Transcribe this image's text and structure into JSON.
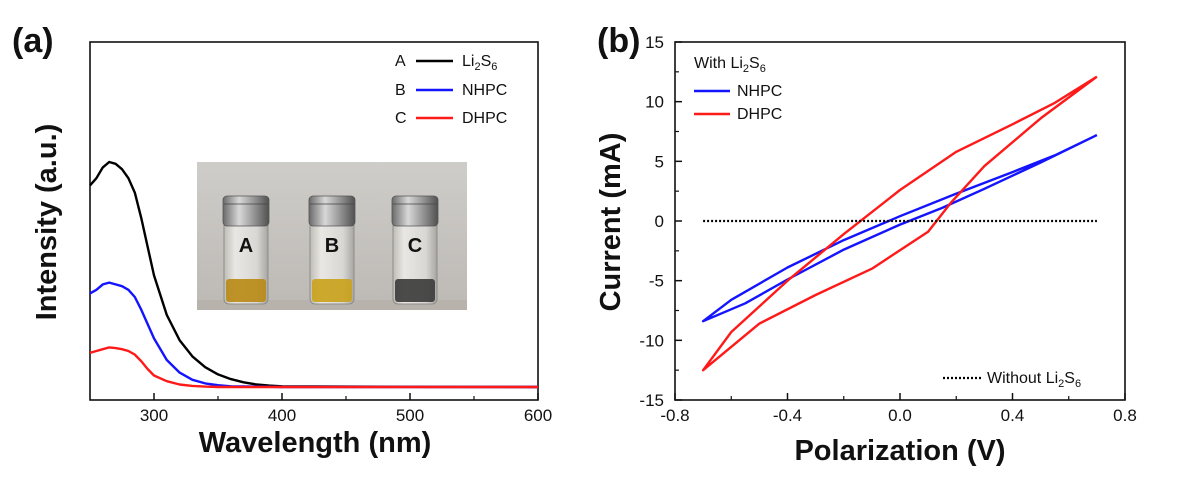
{
  "chart_data": [
    {
      "panel_label": "(a)",
      "type": "line",
      "xlabel": "Wavelength (nm)",
      "ylabel": "Intensity (a.u.)",
      "xlim": [
        250,
        600
      ],
      "x_ticks": [
        300,
        400,
        500,
        600
      ],
      "y_ticks_shown": false,
      "grid": false,
      "legend_position": "top-right",
      "legend": [
        {
          "letter": "A",
          "base": "Li",
          "sub1": "2",
          "mid": "S",
          "sub2": "6",
          "color": "#000000"
        },
        {
          "letter": "B",
          "base": "NHPC",
          "color": "#1414ff"
        },
        {
          "letter": "C",
          "base": "DHPC",
          "color": "#ff1a1a"
        }
      ],
      "series": [
        {
          "color": "#000000",
          "points": [
            [
              250,
              0.56
            ],
            [
              255,
              0.58
            ],
            [
              260,
              0.61
            ],
            [
              265,
              0.625
            ],
            [
              270,
              0.62
            ],
            [
              275,
              0.605
            ],
            [
              280,
              0.58
            ],
            [
              285,
              0.54
            ],
            [
              290,
              0.47
            ],
            [
              295,
              0.39
            ],
            [
              300,
              0.31
            ],
            [
              310,
              0.2
            ],
            [
              320,
              0.13
            ],
            [
              330,
              0.085
            ],
            [
              340,
              0.055
            ],
            [
              350,
              0.035
            ],
            [
              360,
              0.022
            ],
            [
              370,
              0.013
            ],
            [
              380,
              0.007
            ],
            [
              390,
              0.004
            ],
            [
              400,
              0.002
            ],
            [
              450,
              0.001
            ],
            [
              500,
              0.0005
            ],
            [
              600,
              0
            ]
          ]
        },
        {
          "color": "#1414ff",
          "points": [
            [
              250,
              0.26
            ],
            [
              255,
              0.27
            ],
            [
              260,
              0.285
            ],
            [
              265,
              0.29
            ],
            [
              270,
              0.285
            ],
            [
              275,
              0.28
            ],
            [
              280,
              0.27
            ],
            [
              285,
              0.25
            ],
            [
              290,
              0.215
            ],
            [
              295,
              0.175
            ],
            [
              300,
              0.135
            ],
            [
              310,
              0.075
            ],
            [
              320,
              0.04
            ],
            [
              330,
              0.02
            ],
            [
              340,
              0.01
            ],
            [
              350,
              0.005
            ],
            [
              360,
              0.002
            ],
            [
              380,
              0.001
            ],
            [
              400,
              0
            ],
            [
              600,
              0
            ]
          ]
        },
        {
          "color": "#ff1a1a",
          "points": [
            [
              250,
              0.095
            ],
            [
              255,
              0.1
            ],
            [
              260,
              0.105
            ],
            [
              265,
              0.11
            ],
            [
              270,
              0.108
            ],
            [
              275,
              0.105
            ],
            [
              280,
              0.1
            ],
            [
              285,
              0.09
            ],
            [
              290,
              0.072
            ],
            [
              295,
              0.05
            ],
            [
              300,
              0.032
            ],
            [
              310,
              0.016
            ],
            [
              320,
              0.007
            ],
            [
              330,
              0.003
            ],
            [
              340,
              0.001
            ],
            [
              350,
              0
            ],
            [
              600,
              0
            ]
          ]
        }
      ],
      "inset_photo": {
        "vial_labels": [
          "A",
          "B",
          "C"
        ],
        "liquid_colors": [
          "#b88a14",
          "#c9a21a",
          "#3a3a3a"
        ]
      }
    },
    {
      "panel_label": "(b)",
      "type": "line",
      "xlabel": "Polarization (V)",
      "ylabel": "Current (mA)",
      "xlim": [
        -0.8,
        0.8
      ],
      "ylim": [
        -15,
        15
      ],
      "x_ticks": [
        "-0.8",
        "-0.4",
        "0.0",
        "0.4",
        "0.8"
      ],
      "y_ticks": [
        "15",
        "10",
        "5",
        "0",
        "-5",
        "-10",
        "-15"
      ],
      "grid": false,
      "legend_title": {
        "base": "With Li",
        "sub1": "2",
        "mid": "S",
        "sub2": "6"
      },
      "legend": [
        {
          "base": "NHPC",
          "color": "#1414ff"
        },
        {
          "base": "DHPC",
          "color": "#ff1a1a"
        }
      ],
      "legend2": {
        "base": "Without Li",
        "sub1": "2",
        "mid": "S",
        "sub2": "6",
        "color": "#000000"
      },
      "series": [
        {
          "color": "#1414ff",
          "points": [
            [
              0.7,
              7.2
            ],
            [
              0.5,
              4.9
            ],
            [
              0.3,
              2.7
            ],
            [
              0.15,
              1.1
            ],
            [
              0.0,
              -0.3
            ],
            [
              -0.2,
              -2.4
            ],
            [
              -0.4,
              -4.9
            ],
            [
              -0.55,
              -6.9
            ],
            [
              -0.7,
              -8.4
            ],
            [
              -0.6,
              -6.6
            ],
            [
              -0.4,
              -3.9
            ],
            [
              -0.2,
              -1.6
            ],
            [
              0.0,
              0.4
            ],
            [
              0.2,
              2.3
            ],
            [
              0.4,
              4.1
            ],
            [
              0.55,
              5.5
            ],
            [
              0.7,
              7.2
            ]
          ]
        },
        {
          "color": "#ff1a1a",
          "points": [
            [
              0.7,
              12.1
            ],
            [
              0.5,
              8.6
            ],
            [
              0.3,
              4.6
            ],
            [
              0.18,
              1.5
            ],
            [
              0.1,
              -0.9
            ],
            [
              -0.1,
              -4.0
            ],
            [
              -0.3,
              -6.2
            ],
            [
              -0.5,
              -8.6
            ],
            [
              -0.7,
              -12.5
            ],
            [
              -0.6,
              -9.3
            ],
            [
              -0.4,
              -5.0
            ],
            [
              -0.2,
              -1.1
            ],
            [
              0.0,
              2.6
            ],
            [
              0.2,
              5.8
            ],
            [
              0.4,
              8.1
            ],
            [
              0.55,
              9.9
            ],
            [
              0.7,
              12.1
            ]
          ]
        },
        {
          "color": "#000000",
          "dashed": true,
          "points": [
            [
              -0.7,
              0.0
            ],
            [
              0.7,
              0.0
            ]
          ]
        }
      ]
    }
  ]
}
